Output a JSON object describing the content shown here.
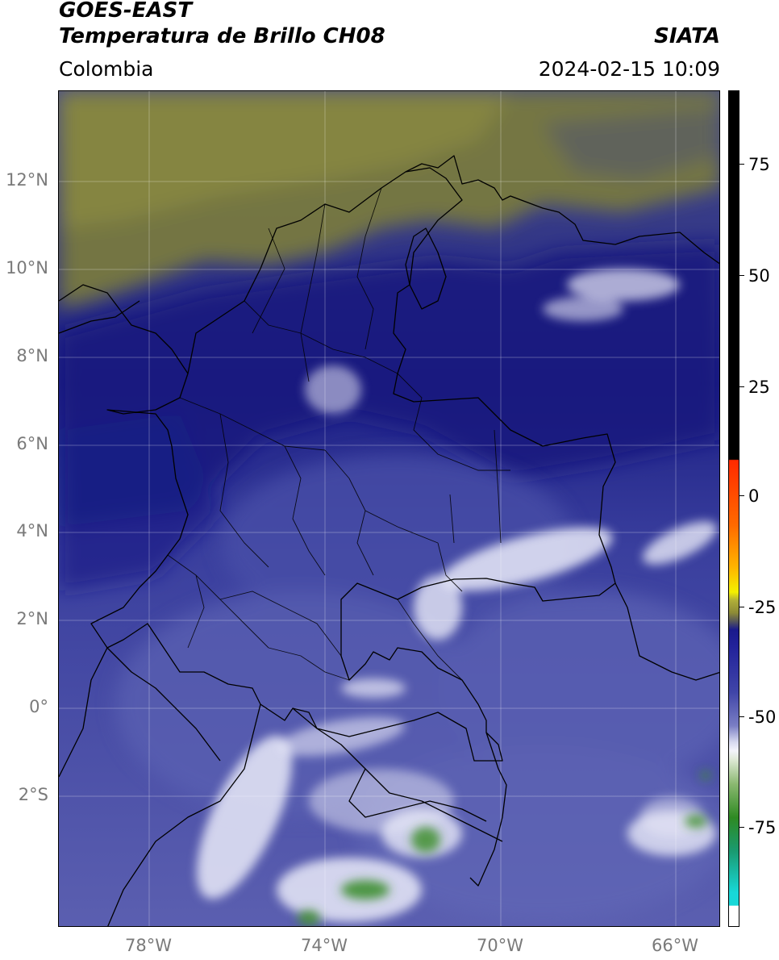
{
  "header": {
    "title_line1": "GOES-EAST",
    "title_line2": "Temperatura de Brillo CH08",
    "brand": "SIATA",
    "region": "Colombia",
    "datetime": "2024-02-15 10:09"
  },
  "map": {
    "lat_labels": [
      "12°N",
      "10°N",
      "8°N",
      "6°N",
      "4°N",
      "2°N",
      "0°",
      "2°S"
    ],
    "lon_labels": [
      "78°W",
      "74°W",
      "70°W",
      "66°W"
    ],
    "gridlines": true
  },
  "colorbar": {
    "tick_labels": [
      "75",
      "50",
      "25",
      "0",
      "-25",
      "-50",
      "-75"
    ],
    "colors": {
      "black": "#000000",
      "red": "#ff2a00",
      "orange": "#ff9a00",
      "yellow": "#f4f000",
      "olive": "#8c8a36",
      "navy": "#1a1a8c",
      "slate": "#5a5fb0",
      "white": "#f4f4fb",
      "green": "#2e8a22",
      "cyan": "#18d8d8"
    }
  }
}
